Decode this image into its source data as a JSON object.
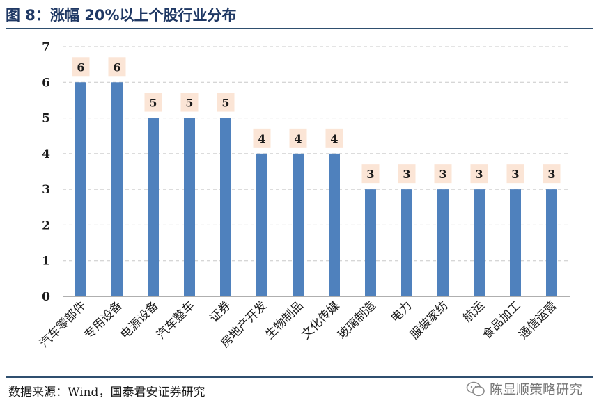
{
  "title": "图 8：涨幅 20%以上个股行业分布",
  "source": "数据来源：Wind，国泰君安证券研究",
  "watermark": "陈显顺策略研究",
  "colors": {
    "bar": "#4f81bd",
    "label_bg": "#fbe5d6",
    "grid": "#c8c8c8",
    "title": "#1f3864"
  },
  "chart_data": {
    "type": "bar",
    "categories": [
      "汽车零部件",
      "专用设备",
      "电源设备",
      "汽车整车",
      "证券",
      "房地产开发",
      "生物制品",
      "文化传媒",
      "玻璃制造",
      "电力",
      "服装家纺",
      "航运",
      "食品加工",
      "通信运营"
    ],
    "values": [
      6,
      6,
      5,
      5,
      5,
      4,
      4,
      4,
      3,
      3,
      3,
      3,
      3,
      3
    ],
    "ylim": [
      0,
      7
    ],
    "yticks": [
      "0",
      "1",
      "2",
      "3",
      "4",
      "5",
      "6",
      "7"
    ],
    "grid": true,
    "xlabel": "",
    "ylabel": ""
  }
}
